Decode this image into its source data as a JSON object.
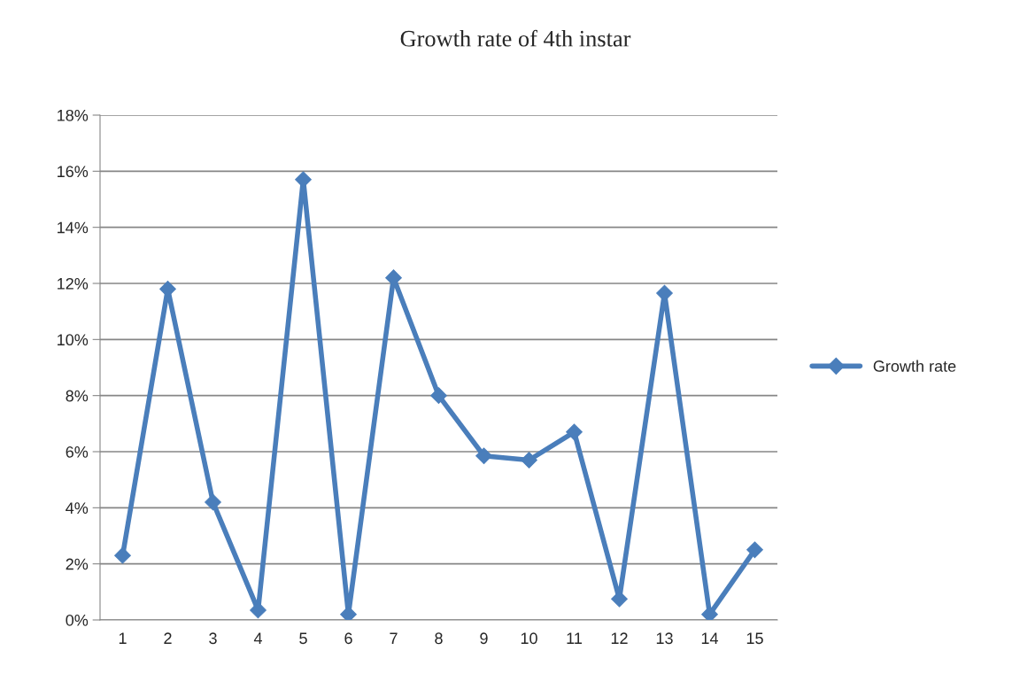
{
  "chart_data": {
    "type": "line",
    "title": "Growth rate of 4th instar",
    "categories": [
      "1",
      "2",
      "3",
      "4",
      "5",
      "6",
      "7",
      "8",
      "9",
      "10",
      "11",
      "12",
      "13",
      "14",
      "15"
    ],
    "series": [
      {
        "name": "Growth rate",
        "color": "#4a7ebb",
        "values": [
          2.3,
          11.8,
          4.2,
          0.35,
          15.7,
          0.2,
          12.2,
          8.0,
          5.85,
          5.7,
          6.7,
          0.75,
          11.65,
          0.2,
          2.5
        ]
      }
    ],
    "ylim": [
      0,
      18
    ],
    "yticks": [
      {
        "value": 0,
        "label": "0%"
      },
      {
        "value": 2,
        "label": "2%"
      },
      {
        "value": 4,
        "label": "4%"
      },
      {
        "value": 6,
        "label": "6%"
      },
      {
        "value": 8,
        "label": "8%"
      },
      {
        "value": 10,
        "label": "10%"
      },
      {
        "value": 12,
        "label": "12%"
      },
      {
        "value": 14,
        "label": "14%"
      },
      {
        "value": 16,
        "label": "16%"
      },
      {
        "value": 18,
        "label": "18%"
      }
    ],
    "grid": "y",
    "legend": "right",
    "marker": "diamond",
    "line_style": "solid"
  }
}
